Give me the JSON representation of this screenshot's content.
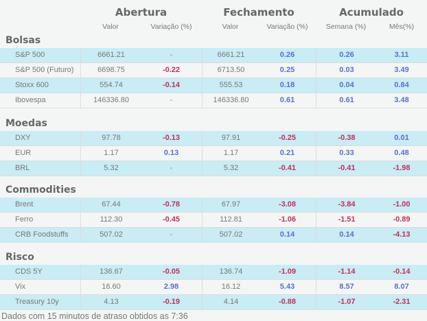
{
  "header": {
    "groups": [
      "Abertura",
      "Fechamento",
      "Acumulado"
    ],
    "columns": [
      "Valor",
      "Variação (%)",
      "Valor",
      "Variação (%)",
      "Semana (%)",
      "Mês(%)"
    ]
  },
  "colors": {
    "positive": "#5570d0",
    "negative": "#c0305a",
    "row_highlight": "#c9ecf5",
    "background": "#f4f6f6"
  },
  "sections": [
    {
      "title": "Bolsas",
      "rows": [
        [
          "S&P 500",
          "6661.21",
          "-",
          "6661.21",
          "0.26",
          "0.26",
          "3.11"
        ],
        [
          "S&P 500 (Futuro)",
          "6698.75",
          "-0.22",
          "6713.50",
          "0.25",
          "0.03",
          "3.49"
        ],
        [
          "Stoxx 600",
          "554.74",
          "-0.14",
          "555.53",
          "0.18",
          "0.04",
          "0.84"
        ],
        [
          "Ibovespa",
          "146336.80",
          "-",
          "146336.80",
          "0.61",
          "0.61",
          "3.48"
        ]
      ]
    },
    {
      "title": "Moedas",
      "rows": [
        [
          "DXY",
          "97.78",
          "-0.13",
          "97.91",
          "-0.25",
          "-0.38",
          "0.01"
        ],
        [
          "EUR",
          "1.17",
          "0.13",
          "1.17",
          "0.21",
          "0.33",
          "0.48"
        ],
        [
          "BRL",
          "5.32",
          "-",
          "5.32",
          "-0.41",
          "-0.41",
          "-1.98"
        ]
      ]
    },
    {
      "title": "Commodities",
      "rows": [
        [
          "Brent",
          "67.44",
          "-0.78",
          "67.97",
          "-3.08",
          "-3.84",
          "-1.00"
        ],
        [
          "Ferro",
          "112.30",
          "-0.45",
          "112.81",
          "-1.06",
          "-1.51",
          "-0.89"
        ],
        [
          "CRB Foodstuffs",
          "507.02",
          "-",
          "507.02",
          "0.14",
          "0.14",
          "-4.13"
        ]
      ]
    },
    {
      "title": "Risco",
      "rows": [
        [
          "CDS 5Y",
          "136.67",
          "-0.05",
          "136.74",
          "-1.09",
          "-1.14",
          "-0.14"
        ],
        [
          "Vix",
          "16.60",
          "2.98",
          "16.12",
          "5.43",
          "8.57",
          "8.07"
        ],
        [
          "Treasury 10y",
          "4.13",
          "-0.19",
          "4.14",
          "-0.88",
          "-1.07",
          "-2.31"
        ]
      ]
    }
  ],
  "footer": "Dados com 15 minutos de atraso obtidos as 7:36"
}
